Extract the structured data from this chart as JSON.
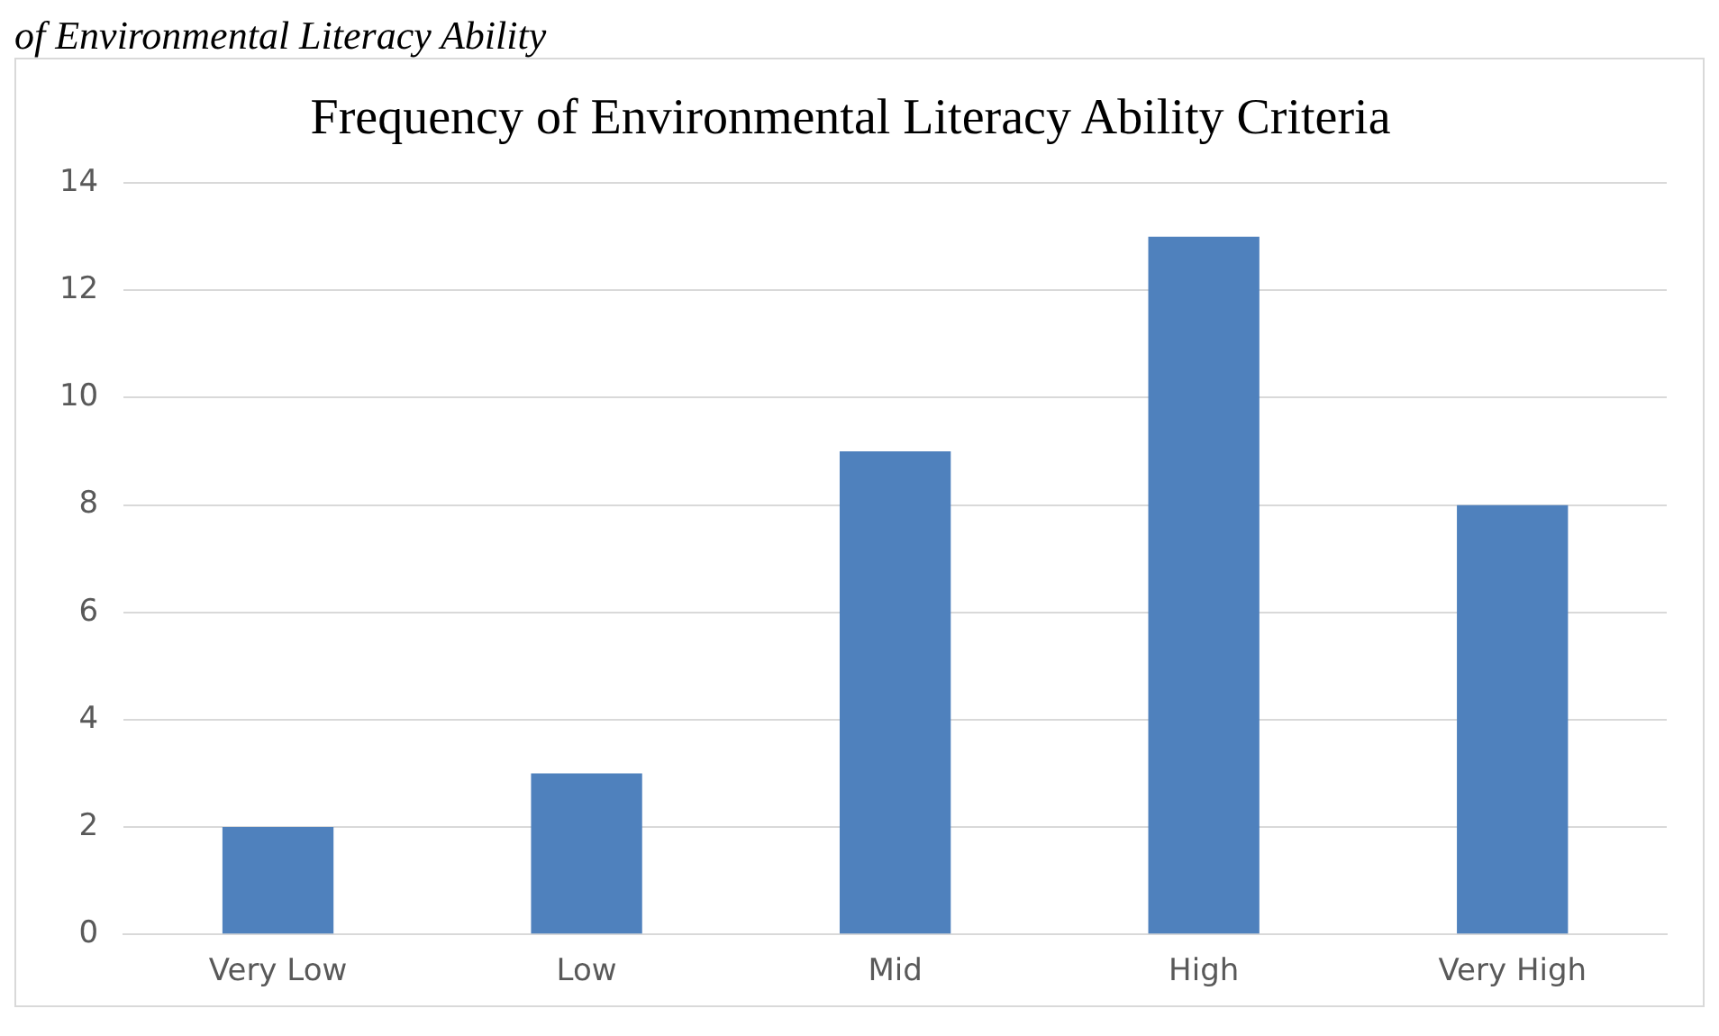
{
  "chart_data": {
    "type": "bar",
    "title": "Frequency of Environmental Literacy Ability Criteria",
    "annotations": [
      "of Environmental Literacy Ability"
    ],
    "categories": [
      "Very Low",
      "Low",
      "Mid",
      "High",
      "Very High"
    ],
    "values": [
      2,
      3,
      9,
      13,
      8
    ],
    "color": "#4f81bd",
    "ylim": [
      0,
      14
    ],
    "yticks": [
      0,
      2,
      4,
      6,
      8,
      10,
      12,
      14
    ],
    "grid": "y",
    "legend": false
  }
}
